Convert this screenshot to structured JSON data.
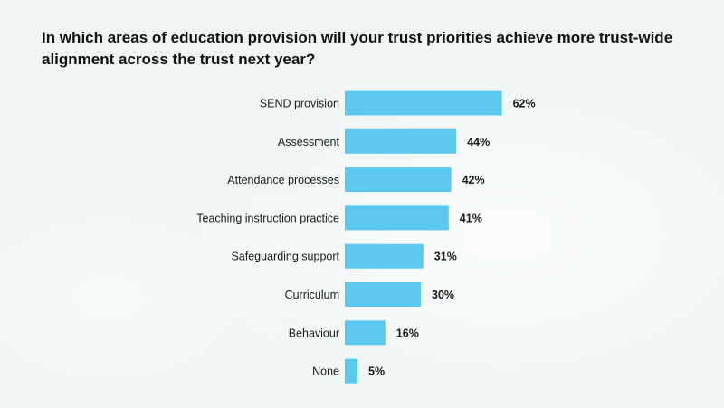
{
  "chart_data": {
    "type": "bar",
    "orientation": "horizontal",
    "title": "In which areas of education provision will your trust priorities achieve more trust-wide alignment across the trust next year?",
    "categories": [
      "SEND provision",
      "Assessment",
      "Attendance processes",
      "Teaching instruction practice",
      "Safeguarding support",
      "Curriculum",
      "Behaviour",
      "None"
    ],
    "values": [
      62,
      44,
      42,
      41,
      31,
      30,
      16,
      5
    ],
    "value_labels": [
      "62%",
      "44%",
      "42%",
      "41%",
      "31%",
      "30%",
      "16%",
      "5%"
    ],
    "unit": "%",
    "xlim": [
      0,
      100
    ],
    "grid": false,
    "legend": "none",
    "bar_color": "#5bc8ee",
    "background_color": "#eef5f4"
  }
}
